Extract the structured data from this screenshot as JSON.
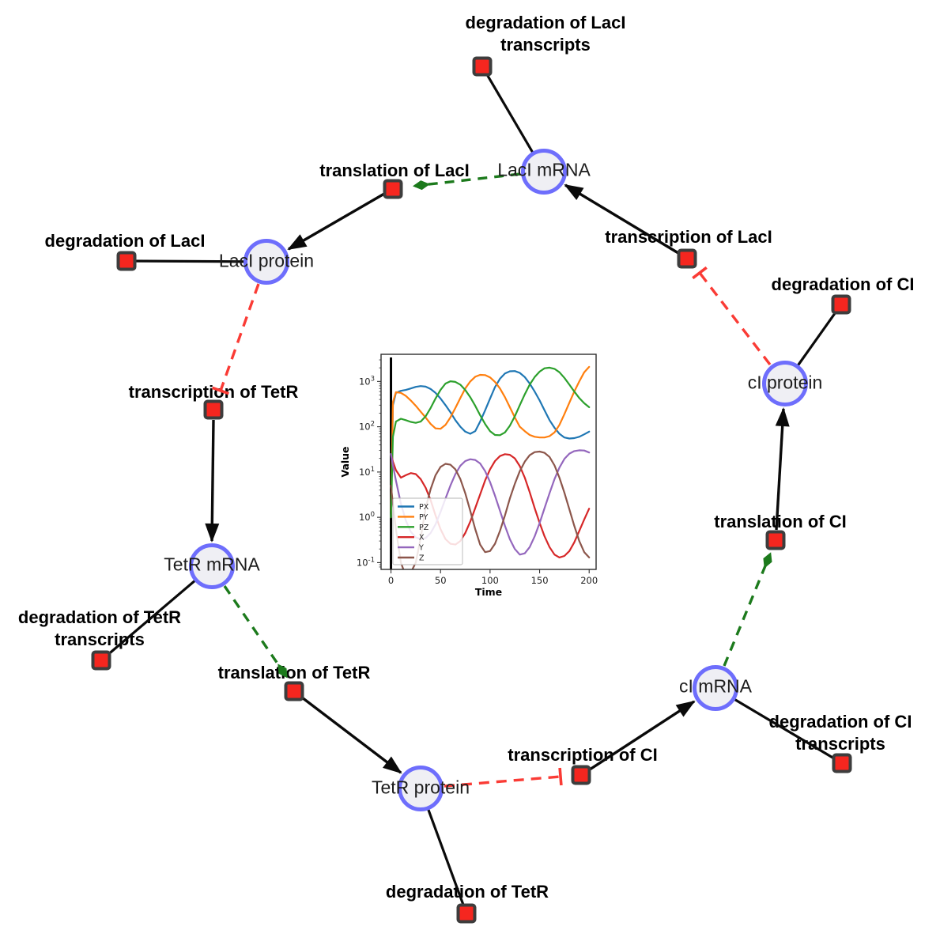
{
  "diagram": {
    "species": {
      "laci_mrna": "LacI mRNA",
      "laci_protein": "LacI protein",
      "tetr_mrna": "TetR mRNA",
      "tetr_protein": "TetR protein",
      "ci_mrna": "cI mRNA",
      "ci_protein": "cI protein"
    },
    "reactions": {
      "deg_laci_tx": "degradation of LacI transcripts",
      "translation_laci": "translation of LacI",
      "deg_laci": "degradation of LacI",
      "transcription_tetr": "transcription of TetR",
      "deg_tetr_tx": "degradation of TetR transcripts",
      "translation_tetr": "translation of TetR",
      "deg_tetr": "degradation of TetR",
      "transcription_ci": "transcription of CI",
      "deg_ci_tx": "degradation of CI transcripts",
      "translation_ci": "translation of CI",
      "deg_ci": "degradation of CI",
      "transcription_laci": "transcription of LacI"
    },
    "colors": {
      "species_fill": "#efeff4",
      "species_border": "#6e6efc",
      "reaction_fill": "#f5261f",
      "reaction_border": "#3d3d3d",
      "edge": "#0a0a0a",
      "activation": "#1c7a1c",
      "inhibition": "#fa3b35"
    }
  },
  "chart_data": {
    "type": "line",
    "title": "",
    "xlabel": "Time",
    "ylabel": "Value",
    "y_scale": "log",
    "grid": false,
    "legend_position": "lower left",
    "x_ticks": [
      0,
      50,
      100,
      150,
      200
    ],
    "y_tick_exponents": [
      -1,
      0,
      1,
      2,
      3
    ],
    "xlim": [
      -10,
      207
    ],
    "ylim_log10": [
      -1.15,
      3.6
    ],
    "marker_line_x": 0,
    "x": [
      0,
      2,
      5,
      10,
      15,
      20,
      25,
      30,
      35,
      40,
      45,
      50,
      55,
      60,
      65,
      70,
      75,
      80,
      85,
      90,
      95,
      100,
      105,
      110,
      115,
      120,
      125,
      130,
      135,
      140,
      145,
      150,
      155,
      160,
      165,
      170,
      175,
      180,
      185,
      190,
      195,
      200
    ],
    "series": [
      {
        "name": "PX",
        "color": "#1f77b4",
        "values": [
          1,
          300,
          560,
          620,
          650,
          700,
          760,
          790,
          770,
          680,
          560,
          420,
          300,
          210,
          140,
          100,
          78,
          70,
          80,
          130,
          230,
          420,
          750,
          1150,
          1500,
          1680,
          1700,
          1550,
          1250,
          900,
          600,
          380,
          230,
          140,
          95,
          70,
          58,
          55,
          56,
          60,
          68,
          78
        ]
      },
      {
        "name": "PY",
        "color": "#ff7f0e",
        "values": [
          1,
          350,
          580,
          560,
          480,
          380,
          290,
          215,
          160,
          115,
          92,
          90,
          110,
          160,
          260,
          430,
          700,
          1000,
          1270,
          1400,
          1380,
          1230,
          980,
          700,
          450,
          270,
          160,
          100,
          80,
          66,
          60,
          58,
          58,
          62,
          75,
          110,
          190,
          340,
          600,
          1000,
          1600,
          2100
        ]
      },
      {
        "name": "PZ",
        "color": "#2ca02c",
        "values": [
          1,
          60,
          130,
          150,
          140,
          128,
          122,
          130,
          170,
          260,
          420,
          650,
          900,
          1010,
          980,
          850,
          650,
          450,
          290,
          180,
          115,
          80,
          66,
          65,
          75,
          105,
          170,
          300,
          520,
          850,
          1250,
          1650,
          1950,
          2020,
          1900,
          1600,
          1200,
          850,
          600,
          430,
          330,
          270
        ]
      },
      {
        "name": "X",
        "color": "#d62728",
        "values": [
          25,
          17,
          11,
          7.5,
          8.5,
          9.5,
          9,
          7,
          4.5,
          2.4,
          1.1,
          0.55,
          0.33,
          0.26,
          0.25,
          0.3,
          0.45,
          0.8,
          1.6,
          3.2,
          6.5,
          11.5,
          17.5,
          22.5,
          24.8,
          24,
          20,
          13.5,
          7.5,
          3.6,
          1.6,
          0.75,
          0.38,
          0.22,
          0.15,
          0.13,
          0.14,
          0.18,
          0.28,
          0.5,
          0.9,
          1.55
        ]
      },
      {
        "name": "Y",
        "color": "#9467bd",
        "values": [
          25,
          14,
          6.5,
          2,
          0.85,
          0.48,
          0.36,
          0.33,
          0.35,
          0.45,
          0.7,
          1.3,
          2.6,
          5,
          9,
          13.8,
          17.5,
          19.2,
          18.5,
          15.5,
          10.5,
          6,
          3,
          1.4,
          0.65,
          0.33,
          0.2,
          0.15,
          0.16,
          0.22,
          0.38,
          0.75,
          1.6,
          3.4,
          7,
          12.5,
          19.5,
          25.5,
          29,
          30.2,
          29.8,
          27
        ]
      },
      {
        "name": "Z",
        "color": "#8c564b",
        "values": [
          5,
          2,
          0.55,
          0.1,
          0.05,
          0.06,
          0.1,
          0.35,
          1.6,
          4.2,
          8.5,
          13,
          15.2,
          14.5,
          11.5,
          7,
          3.4,
          1.4,
          0.55,
          0.25,
          0.17,
          0.18,
          0.26,
          0.5,
          1.1,
          2.6,
          5.5,
          10.5,
          17,
          23.5,
          27.5,
          28.3,
          26.5,
          21.5,
          14,
          7.5,
          3.5,
          1.5,
          0.65,
          0.3,
          0.17,
          0.13
        ]
      }
    ]
  }
}
